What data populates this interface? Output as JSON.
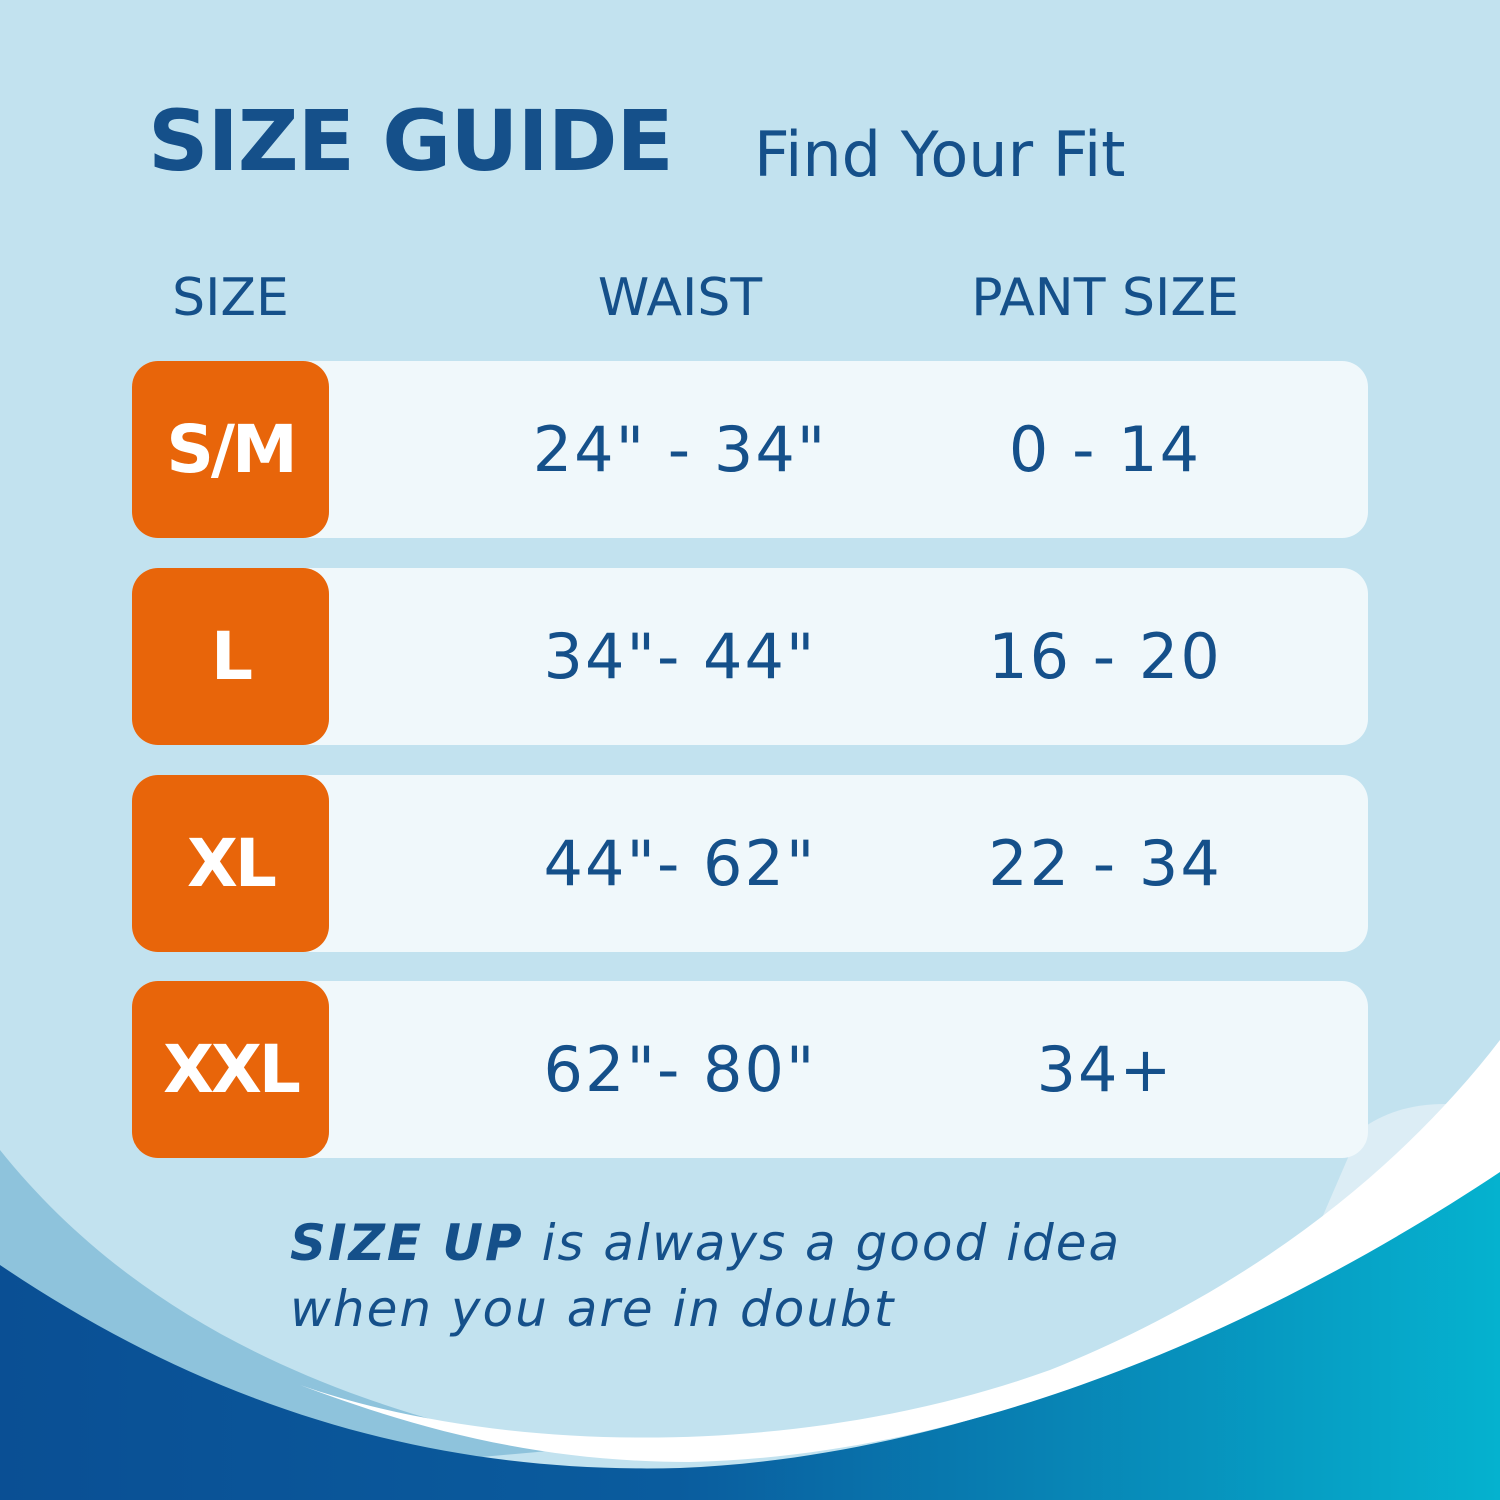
{
  "header": {
    "title": "SIZE GUIDE",
    "subtitle": "Find Your Fit"
  },
  "columns": [
    "SIZE",
    "WAIST",
    "PANT SIZE"
  ],
  "rows": [
    {
      "size": "S/M",
      "waist": "24\" - 34\"",
      "pant": "0 - 14"
    },
    {
      "size": "L",
      "waist": "34\"- 44\"",
      "pant": "16 - 20"
    },
    {
      "size": "XL",
      "waist": "44\"- 62\"",
      "pant": "22 - 34"
    },
    {
      "size": "XXL",
      "waist": "62\"- 80\"",
      "pant": "34+"
    }
  ],
  "note": {
    "emphasis": "SIZE UP",
    "line1": " is always a good idea",
    "line2": "when you are in doubt"
  },
  "colors": {
    "background": "#c2e2ef",
    "badge": "#e8650a",
    "text": "#15508a",
    "row": "#f0f8fb"
  }
}
